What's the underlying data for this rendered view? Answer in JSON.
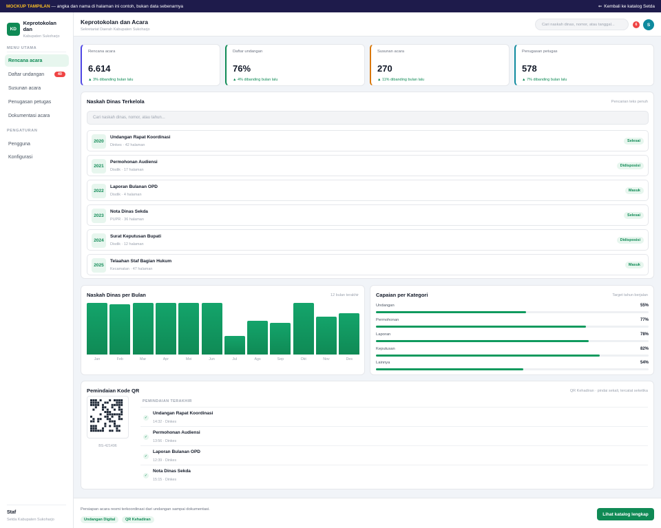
{
  "banner": {
    "tag": "MOCKUP TAMPILAN",
    "text": "— angka dan nama di halaman ini contoh, bukan data sebenarnya",
    "back": "Kembali ke katalog Setda"
  },
  "brand": {
    "logo": "KD",
    "name": "Keprotokolan dan",
    "sub": "Kabupaten Sukoharjo"
  },
  "sidebar": {
    "main_label": "MENU UTAMA",
    "main": [
      {
        "label": "Rencana acara",
        "active": true
      },
      {
        "label": "Daftar undangan",
        "badge": "40"
      },
      {
        "label": "Susunan acara"
      },
      {
        "label": "Penugasan petugas"
      },
      {
        "label": "Dokumentasi acara"
      }
    ],
    "settings_label": "PENGATURAN",
    "settings": [
      {
        "label": "Pengguna"
      },
      {
        "label": "Konfigurasi"
      }
    ],
    "footer": {
      "role": "Staf",
      "dept": "Setda Kabupaten Sukoharjo"
    }
  },
  "header": {
    "title": "Keprotokolan dan Acara",
    "subtitle": "Sekretariat Daerah Kabupaten Sukoharjo",
    "search_placeholder": "Cari naskah dinas, nomor, atau tanggal...",
    "notif_count": "6",
    "avatar": "S"
  },
  "stats": [
    {
      "label": "Rencana acara",
      "value": "6.614",
      "change": "▲ 3% dibanding bulan lalu",
      "color": "#4f46e5"
    },
    {
      "label": "Daftar undangan",
      "value": "76%",
      "change": "▲ 4% dibanding bulan lalu",
      "color": "#0f8a55"
    },
    {
      "label": "Susunan acara",
      "value": "270",
      "change": "▲ 11% dibanding bulan lalu",
      "color": "#d97706"
    },
    {
      "label": "Penugasan petugas",
      "value": "578",
      "change": "▲ 7% dibanding bulan lalu",
      "color": "#0e8a9e"
    }
  ],
  "docs": {
    "title": "Naskah Dinas Terkelola",
    "note": "Pencarian teks penuh",
    "search_placeholder": "Cari naskah dinas, nomor, atau tahun...",
    "items": [
      {
        "year": "2020",
        "title": "Undangan Rapat Koordinasi",
        "meta": "Dinkes · 42 halaman",
        "status": "Selesai"
      },
      {
        "year": "2021",
        "title": "Permohonan Audiensi",
        "meta": "Disdik · 17 halaman",
        "status": "Didisposisi"
      },
      {
        "year": "2022",
        "title": "Laporan Bulanan OPD",
        "meta": "Disdik · 4 halaman",
        "status": "Masuk"
      },
      {
        "year": "2023",
        "title": "Nota Dinas Sekda",
        "meta": "PUPR · 36 halaman",
        "status": "Selesai"
      },
      {
        "year": "2024",
        "title": "Surat Keputusan Bupati",
        "meta": "Disdik · 12 halaman",
        "status": "Didisposisi"
      },
      {
        "year": "2025",
        "title": "Telaahan Staf Bagian Hukum",
        "meta": "Kecamatan · 47 halaman",
        "status": "Masuk"
      }
    ]
  },
  "monthly": {
    "title": "Naskah Dinas per Bulan",
    "note": "12 bulan terakhir"
  },
  "chart_data": {
    "type": "bar",
    "categories": [
      "Jan",
      "Feb",
      "Mar",
      "Apr",
      "Mei",
      "Jun",
      "Jul",
      "Ags",
      "Sep",
      "Okt",
      "Nov",
      "Des"
    ],
    "values": [
      100,
      97,
      100,
      100,
      100,
      100,
      36,
      66,
      62,
      100,
      73,
      80
    ],
    "ylim": [
      0,
      100
    ],
    "grid": false,
    "legend": "none"
  },
  "categories": {
    "title": "Capaian per Kategori",
    "note": "Target tahun berjalan",
    "items": [
      {
        "label": "Undangan",
        "value": "55%",
        "pct": 55
      },
      {
        "label": "Permohonan",
        "value": "77%",
        "pct": 77
      },
      {
        "label": "Laporan",
        "value": "78%",
        "pct": 78
      },
      {
        "label": "Keputusan",
        "value": "82%",
        "pct": 82
      },
      {
        "label": "Lainnya",
        "value": "54%",
        "pct": 54
      }
    ]
  },
  "qr": {
    "title": "Pemindaian Kode QR",
    "note": "QR Kehadiran · pindai sekali, tercatat seketika",
    "code": "BS-421496",
    "recent_label": "PEMINDAIAN TERAKHIR",
    "recent": [
      {
        "title": "Undangan Rapat Koordinasi",
        "meta": "14:32 · Dinkes"
      },
      {
        "title": "Permohonan Audiensi",
        "meta": "13:56 · Dinkes"
      },
      {
        "title": "Laporan Bulanan OPD",
        "meta": "12:39 · Dinkes"
      },
      {
        "title": "Nota Dinas Sekda",
        "meta": "15:15 · Dinkes"
      }
    ]
  },
  "footer": {
    "text": "Persiapan acara resmi terkoordinasi dari undangan sampai dokumentasi.",
    "tags": [
      "Undangan Digital",
      "QR Kehadiran"
    ],
    "cta": "Lihat katalog lengkap"
  }
}
